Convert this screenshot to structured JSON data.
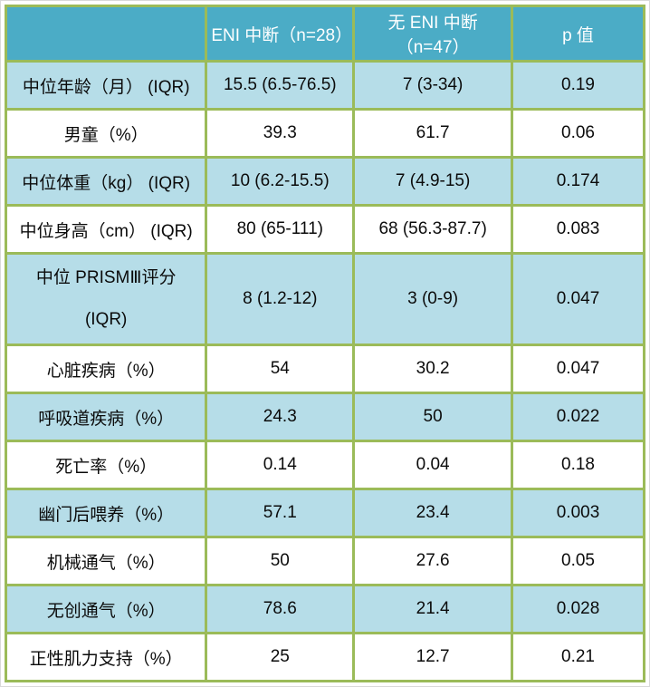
{
  "colors": {
    "header_bg": "#4bacc6",
    "row_blue": "#b6dde8",
    "row_white": "#ffffff",
    "border_green": "#9bbb59",
    "header_text": "#ffffff",
    "body_text": "#0b0b0b"
  },
  "table": {
    "headers": [
      "",
      "ENI 中断（n=28）",
      "无 ENI 中断（n=47）",
      "p 值"
    ],
    "rows": [
      {
        "label_lines": [
          "中位年龄（月） (IQR)"
        ],
        "values": [
          "15.5 (6.5-76.5)",
          "7 (3-34)",
          "0.19"
        ],
        "tall": false
      },
      {
        "label_lines": [
          "男童（%）"
        ],
        "values": [
          "39.3",
          "61.7",
          "0.06"
        ],
        "tall": false
      },
      {
        "label_lines": [
          "中位体重（kg） (IQR)"
        ],
        "values": [
          "10 (6.2-15.5)",
          "7 (4.9-15)",
          "0.174"
        ],
        "tall": false
      },
      {
        "label_lines": [
          "中位身高（cm） (IQR)"
        ],
        "values": [
          "80 (65-111)",
          "68 (56.3-87.7)",
          "0.083"
        ],
        "tall": false
      },
      {
        "label_lines": [
          "中位 PRISMⅢ评分",
          "(IQR)"
        ],
        "values": [
          "8 (1.2-12)",
          "3 (0-9)",
          "0.047"
        ],
        "tall": true
      },
      {
        "label_lines": [
          "心脏疾病（%）"
        ],
        "values": [
          "54",
          "30.2",
          "0.047"
        ],
        "tall": false
      },
      {
        "label_lines": [
          "呼吸道疾病（%）"
        ],
        "values": [
          "24.3",
          "50",
          "0.022"
        ],
        "tall": false
      },
      {
        "label_lines": [
          "死亡率（%）"
        ],
        "values": [
          "0.14",
          "0.04",
          "0.18"
        ],
        "tall": false
      },
      {
        "label_lines": [
          "幽门后喂养（%）"
        ],
        "values": [
          "57.1",
          "23.4",
          "0.003"
        ],
        "tall": false
      },
      {
        "label_lines": [
          "机械通气（%）"
        ],
        "values": [
          "50",
          "27.6",
          "0.05"
        ],
        "tall": false
      },
      {
        "label_lines": [
          "无创通气（%）"
        ],
        "values": [
          "78.6",
          "21.4",
          "0.028"
        ],
        "tall": false
      },
      {
        "label_lines": [
          "正性肌力支持（%）"
        ],
        "values": [
          "25",
          "12.7",
          "0.21"
        ],
        "tall": false
      }
    ]
  }
}
